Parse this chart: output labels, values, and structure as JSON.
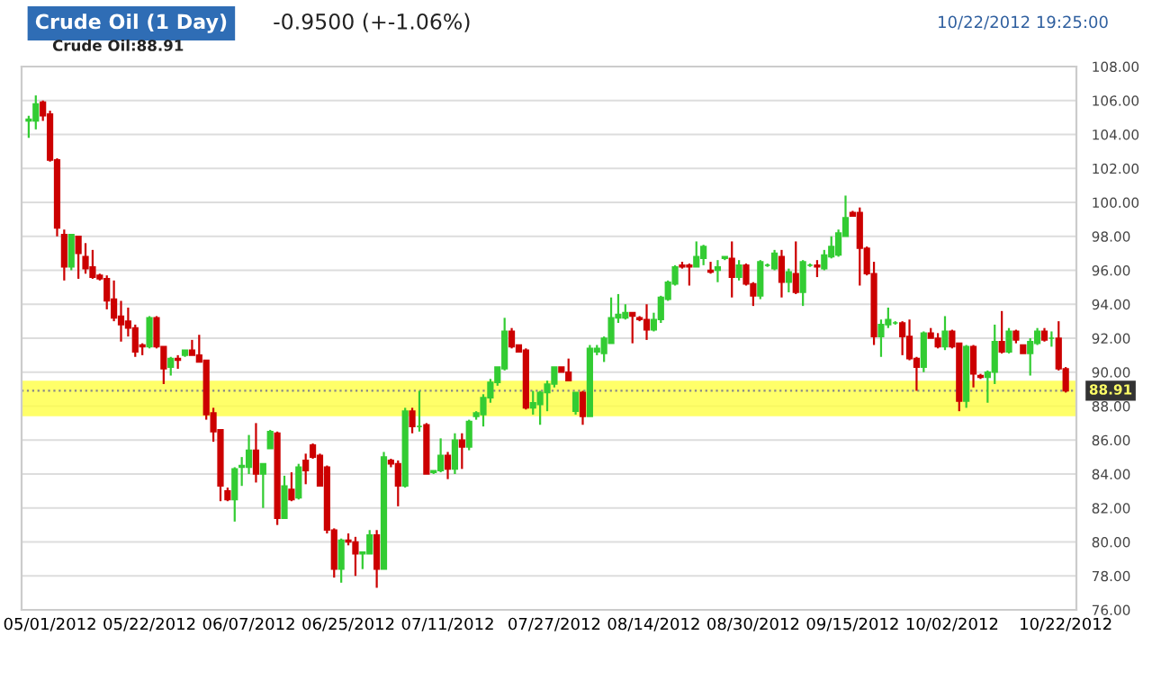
{
  "chart_data": {
    "type": "candlestick",
    "title": "Crude Oil (1 Day)",
    "subtitle": "-0.9500 (+-1.06%)",
    "annotations": [
      "10/22/2012 19:25:00",
      "Crude Oil:88.91"
    ],
    "categories": [
      null,
      null,
      null,
      "05/01/2012",
      null,
      null,
      null,
      null,
      null,
      null,
      null,
      null,
      null,
      null,
      null,
      null,
      null,
      "05/22/2012",
      null,
      null,
      null,
      null,
      null,
      null,
      null,
      null,
      null,
      null,
      null,
      null,
      null,
      "06/07/2012",
      null,
      null,
      null,
      null,
      null,
      null,
      null,
      null,
      null,
      null,
      null,
      null,
      null,
      "06/25/2012",
      null,
      null,
      null,
      null,
      null,
      null,
      null,
      null,
      null,
      null,
      null,
      null,
      null,
      "07/11/2012",
      null,
      null,
      null,
      null,
      null,
      null,
      null,
      null,
      null,
      null,
      null,
      null,
      null,
      null,
      "07/27/2012",
      null,
      null,
      null,
      null,
      null,
      null,
      null,
      null,
      null,
      null,
      null,
      null,
      null,
      "08/14/2012",
      null,
      null,
      null,
      null,
      null,
      null,
      null,
      null,
      null,
      null,
      null,
      null,
      null,
      "08/30/2012",
      null,
      null,
      null,
      null,
      null,
      null,
      null,
      null,
      null,
      null,
      null,
      null,
      null,
      "09/15/2012",
      null,
      null,
      null,
      null,
      null,
      null,
      null,
      null,
      null,
      null,
      null,
      null,
      null,
      "10/02/2012",
      null,
      null,
      null,
      null,
      null,
      null,
      null,
      null,
      null,
      null,
      null,
      null,
      null,
      null,
      null,
      "10/22/2012"
    ],
    "ohlc": [
      [
        104.8,
        105.1,
        103.8,
        104.9
      ],
      [
        104.8,
        106.3,
        104.3,
        105.8
      ],
      [
        105.9,
        106.0,
        104.8,
        105.1
      ],
      [
        105.2,
        105.4,
        102.4,
        102.5
      ],
      [
        102.5,
        102.6,
        98.0,
        98.5
      ],
      [
        98.1,
        98.4,
        95.4,
        96.2
      ],
      [
        96.2,
        98.1,
        96.0,
        98.1
      ],
      [
        98.0,
        98.0,
        95.5,
        97.0
      ],
      [
        96.8,
        97.6,
        95.8,
        96.1
      ],
      [
        96.2,
        97.2,
        95.5,
        95.6
      ],
      [
        95.7,
        95.8,
        95.4,
        95.5
      ],
      [
        95.5,
        95.7,
        93.7,
        94.2
      ],
      [
        94.3,
        95.4,
        93.0,
        93.2
      ],
      [
        93.3,
        94.2,
        91.8,
        92.8
      ],
      [
        93.0,
        93.8,
        92.1,
        92.6
      ],
      [
        92.6,
        92.8,
        90.9,
        91.2
      ],
      [
        91.6,
        91.7,
        91.0,
        91.5
      ],
      [
        91.5,
        93.3,
        91.4,
        93.2
      ],
      [
        93.2,
        93.3,
        91.4,
        91.5
      ],
      [
        91.5,
        91.5,
        89.3,
        90.2
      ],
      [
        90.3,
        90.9,
        89.8,
        90.8
      ],
      [
        90.8,
        91.0,
        90.2,
        90.7
      ],
      [
        91.0,
        91.3,
        90.9,
        91.3
      ],
      [
        91.3,
        91.9,
        91.0,
        91.0
      ],
      [
        91.0,
        92.2,
        90.6,
        90.6
      ],
      [
        90.7,
        90.7,
        87.2,
        87.5
      ],
      [
        87.6,
        87.9,
        85.9,
        86.5
      ],
      [
        86.6,
        86.6,
        82.4,
        83.3
      ],
      [
        83.0,
        83.2,
        82.4,
        82.5
      ],
      [
        82.5,
        84.4,
        81.2,
        84.3
      ],
      [
        84.4,
        85.0,
        83.3,
        84.5
      ],
      [
        84.4,
        86.3,
        84.0,
        85.4
      ],
      [
        85.4,
        87.0,
        83.5,
        84.0
      ],
      [
        84.0,
        84.6,
        82.0,
        84.6
      ],
      [
        85.5,
        86.6,
        85.5,
        86.5
      ],
      [
        86.4,
        86.5,
        81.0,
        81.4
      ],
      [
        81.4,
        83.9,
        81.4,
        83.3
      ],
      [
        83.1,
        84.1,
        82.4,
        82.5
      ],
      [
        82.6,
        84.6,
        82.5,
        84.4
      ],
      [
        84.8,
        85.2,
        83.4,
        84.2
      ],
      [
        85.7,
        85.8,
        84.9,
        85.0
      ],
      [
        85.1,
        85.2,
        83.3,
        83.3
      ],
      [
        84.4,
        84.5,
        80.5,
        80.7
      ],
      [
        80.7,
        80.8,
        77.9,
        78.4
      ],
      [
        78.4,
        80.2,
        77.6,
        80.1
      ],
      [
        80.1,
        80.5,
        79.8,
        80.0
      ],
      [
        80.0,
        80.3,
        78.0,
        79.3
      ],
      [
        79.3,
        79.4,
        78.4,
        79.4
      ],
      [
        79.3,
        80.7,
        79.3,
        80.4
      ],
      [
        80.4,
        80.7,
        77.3,
        78.4
      ],
      [
        78.4,
        85.3,
        78.4,
        85.0
      ],
      [
        84.8,
        84.9,
        84.4,
        84.6
      ],
      [
        84.6,
        84.8,
        82.1,
        83.3
      ],
      [
        83.3,
        87.9,
        83.2,
        87.7
      ],
      [
        87.7,
        87.9,
        86.4,
        86.8
      ],
      [
        86.8,
        88.9,
        86.5,
        86.8
      ],
      [
        86.9,
        87.0,
        84.0,
        84.0
      ],
      [
        84.1,
        84.2,
        84.0,
        84.2
      ],
      [
        84.2,
        86.1,
        84.1,
        85.1
      ],
      [
        85.1,
        85.3,
        83.7,
        84.3
      ],
      [
        84.3,
        86.4,
        84.0,
        86.0
      ],
      [
        86.0,
        86.4,
        84.3,
        85.6
      ],
      [
        85.6,
        87.2,
        85.4,
        87.1
      ],
      [
        87.4,
        87.7,
        87.2,
        87.6
      ],
      [
        87.5,
        88.7,
        86.8,
        88.5
      ],
      [
        88.5,
        89.6,
        88.2,
        89.4
      ],
      [
        89.4,
        90.3,
        89.2,
        90.3
      ],
      [
        90.2,
        93.2,
        90.1,
        92.4
      ],
      [
        92.4,
        92.6,
        91.4,
        91.5
      ],
      [
        91.6,
        91.6,
        91.2,
        91.2
      ],
      [
        91.3,
        91.4,
        87.8,
        87.9
      ],
      [
        87.9,
        88.9,
        87.5,
        88.2
      ],
      [
        88.1,
        88.9,
        86.9,
        88.8
      ],
      [
        88.8,
        89.5,
        87.7,
        89.3
      ],
      [
        89.3,
        90.3,
        89.1,
        90.3
      ],
      [
        90.3,
        90.3,
        90.0,
        90.0
      ],
      [
        90.0,
        90.8,
        89.5,
        89.5
      ],
      [
        87.7,
        88.8,
        87.5,
        88.8
      ],
      [
        88.8,
        88.9,
        86.9,
        87.4
      ],
      [
        87.4,
        91.6,
        87.4,
        91.4
      ],
      [
        91.2,
        91.6,
        91.0,
        91.4
      ],
      [
        91.1,
        92.1,
        90.6,
        92.0
      ],
      [
        91.7,
        94.4,
        91.7,
        93.2
      ],
      [
        93.2,
        94.6,
        92.9,
        93.4
      ],
      [
        93.2,
        94.0,
        93.1,
        93.5
      ],
      [
        93.5,
        93.5,
        91.7,
        93.3
      ],
      [
        93.2,
        93.3,
        93.0,
        93.1
      ],
      [
        93.1,
        94.0,
        91.9,
        92.5
      ],
      [
        92.5,
        93.5,
        92.4,
        93.1
      ],
      [
        93.1,
        94.5,
        92.9,
        94.4
      ],
      [
        94.3,
        95.4,
        94.2,
        95.3
      ],
      [
        95.2,
        96.3,
        95.1,
        96.2
      ],
      [
        96.3,
        96.5,
        96.1,
        96.2
      ],
      [
        96.3,
        96.4,
        95.1,
        96.2
      ],
      [
        96.2,
        97.7,
        96.2,
        96.8
      ],
      [
        96.7,
        97.5,
        96.3,
        97.4
      ],
      [
        96.0,
        96.5,
        95.8,
        95.9
      ],
      [
        96.0,
        96.6,
        95.3,
        96.2
      ],
      [
        96.7,
        96.8,
        96.6,
        96.8
      ],
      [
        96.7,
        97.7,
        94.4,
        95.6
      ],
      [
        95.6,
        96.6,
        95.4,
        96.3
      ],
      [
        96.3,
        96.4,
        95.1,
        95.2
      ],
      [
        95.2,
        95.3,
        93.9,
        94.5
      ],
      [
        94.5,
        96.6,
        94.3,
        96.5
      ],
      [
        96.3,
        96.4,
        96.2,
        96.3
      ],
      [
        96.1,
        97.2,
        96.0,
        97.0
      ],
      [
        96.8,
        97.2,
        94.4,
        95.3
      ],
      [
        95.3,
        96.1,
        94.7,
        95.9
      ],
      [
        95.8,
        97.7,
        94.6,
        94.7
      ],
      [
        94.7,
        96.6,
        93.9,
        96.5
      ],
      [
        96.3,
        96.4,
        96.2,
        96.3
      ],
      [
        96.3,
        96.6,
        95.6,
        96.2
      ],
      [
        96.1,
        97.2,
        96.0,
        96.9
      ],
      [
        96.8,
        98.0,
        96.7,
        97.4
      ],
      [
        96.9,
        98.4,
        96.8,
        98.2
      ],
      [
        98.0,
        100.4,
        98.0,
        99.1
      ],
      [
        99.4,
        99.5,
        99.2,
        99.2
      ],
      [
        99.4,
        99.7,
        95.1,
        97.3
      ],
      [
        97.3,
        97.4,
        95.7,
        95.8
      ],
      [
        95.8,
        96.5,
        91.6,
        92.1
      ],
      [
        92.1,
        93.1,
        90.9,
        92.8
      ],
      [
        92.8,
        93.8,
        92.6,
        93.1
      ],
      [
        92.9,
        93.0,
        92.8,
        92.9
      ],
      [
        92.9,
        93.0,
        91.0,
        92.1
      ],
      [
        92.1,
        93.1,
        90.7,
        90.8
      ],
      [
        90.8,
        90.9,
        88.9,
        90.3
      ],
      [
        90.3,
        92.4,
        90.0,
        92.3
      ],
      [
        92.3,
        92.6,
        92.0,
        92.0
      ],
      [
        92.0,
        92.3,
        91.4,
        91.5
      ],
      [
        91.5,
        93.3,
        91.3,
        92.4
      ],
      [
        92.4,
        92.5,
        91.4,
        91.5
      ],
      [
        91.7,
        91.7,
        87.7,
        88.3
      ],
      [
        88.3,
        91.6,
        87.9,
        91.5
      ],
      [
        91.5,
        91.6,
        89.1,
        89.9
      ],
      [
        89.8,
        89.9,
        89.6,
        89.7
      ],
      [
        89.7,
        90.1,
        88.2,
        90.0
      ],
      [
        90.0,
        92.8,
        89.3,
        91.8
      ],
      [
        91.8,
        93.6,
        91.1,
        91.2
      ],
      [
        91.2,
        92.6,
        91.1,
        92.4
      ],
      [
        92.4,
        92.5,
        91.7,
        91.9
      ],
      [
        91.6,
        91.6,
        91.1,
        91.1
      ],
      [
        91.1,
        92.0,
        89.8,
        91.8
      ],
      [
        91.7,
        92.6,
        91.6,
        92.4
      ],
      [
        92.4,
        92.6,
        91.8,
        91.9
      ],
      [
        92.0,
        92.4,
        91.5,
        92.0
      ],
      [
        92.0,
        93.0,
        90.1,
        90.2
      ],
      [
        90.2,
        90.3,
        88.8,
        88.91
      ]
    ],
    "colors": [
      "#33cc33",
      "#33cc33",
      "#cc0000",
      "#cc0000",
      "#cc0000",
      "#cc0000",
      "#33cc33",
      "#cc0000",
      "#cc0000",
      "#cc0000",
      "#cc0000",
      "#cc0000",
      "#cc0000",
      "#cc0000",
      "#cc0000",
      "#cc0000",
      "#cc0000",
      "#33cc33",
      "#cc0000",
      "#cc0000",
      "#33cc33",
      "#cc0000",
      "#33cc33",
      "#cc0000",
      "#cc0000",
      "#cc0000",
      "#cc0000",
      "#cc0000",
      "#cc0000",
      "#33cc33",
      "#33cc33",
      "#33cc33",
      "#cc0000",
      "#33cc33",
      "#33cc33",
      "#cc0000",
      "#33cc33",
      "#cc0000",
      "#33cc33",
      "#cc0000",
      "#cc0000",
      "#cc0000",
      "#cc0000",
      "#cc0000",
      "#33cc33",
      "#cc0000",
      "#cc0000",
      "#33cc33",
      "#33cc33",
      "#cc0000",
      "#33cc33",
      "#cc0000",
      "#cc0000",
      "#33cc33",
      "#cc0000",
      "#33cc33",
      "#cc0000",
      "#33cc33",
      "#33cc33",
      "#cc0000",
      "#33cc33",
      "#cc0000",
      "#33cc33",
      "#33cc33",
      "#33cc33",
      "#33cc33",
      "#33cc33",
      "#33cc33",
      "#cc0000",
      "#cc0000",
      "#cc0000",
      "#33cc33",
      "#33cc33",
      "#33cc33",
      "#33cc33",
      "#cc0000",
      "#cc0000",
      "#33cc33",
      "#cc0000",
      "#33cc33",
      "#33cc33",
      "#33cc33",
      "#33cc33",
      "#33cc33",
      "#33cc33",
      "#cc0000",
      "#cc0000",
      "#cc0000",
      "#33cc33",
      "#33cc33",
      "#33cc33",
      "#33cc33",
      "#cc0000",
      "#cc0000",
      "#33cc33",
      "#33cc33",
      "#cc0000",
      "#33cc33",
      "#33cc33",
      "#cc0000",
      "#33cc33",
      "#cc0000",
      "#cc0000",
      "#33cc33",
      "#33cc33",
      "#33cc33",
      "#cc0000",
      "#33cc33",
      "#cc0000",
      "#33cc33",
      "#33cc33",
      "#cc0000",
      "#33cc33",
      "#33cc33",
      "#33cc33",
      "#33cc33",
      "#cc0000",
      "#cc0000",
      "#cc0000",
      "#cc0000",
      "#33cc33",
      "#33cc33",
      "#33cc33",
      "#cc0000",
      "#cc0000",
      "#cc0000",
      "#33cc33",
      "#cc0000",
      "#cc0000",
      "#33cc33",
      "#cc0000",
      "#cc0000",
      "#33cc33",
      "#cc0000",
      "#cc0000",
      "#33cc33",
      "#33cc33",
      "#cc0000",
      "#33cc33",
      "#cc0000",
      "#cc0000",
      "#33cc33",
      "#33cc33",
      "#cc0000",
      "#33cc33",
      "#cc0000",
      "#cc0000"
    ],
    "ylim": [
      76,
      108
    ],
    "yticks": [
      {
        "value": 76,
        "label": "76.00"
      },
      {
        "value": 78,
        "label": "78.00"
      },
      {
        "value": 80,
        "label": "80.00"
      },
      {
        "value": 82,
        "label": "82.00"
      },
      {
        "value": 84,
        "label": "84.00"
      },
      {
        "value": 86,
        "label": "86.00"
      },
      {
        "value": 88,
        "label": "88.00"
      },
      {
        "value": 90,
        "label": "90.00"
      },
      {
        "value": 92,
        "label": "92.00"
      },
      {
        "value": 94,
        "label": "94.00"
      },
      {
        "value": 96,
        "label": "96.00"
      },
      {
        "value": 98,
        "label": "98.00"
      },
      {
        "value": 100,
        "label": "100.00"
      },
      {
        "value": 102,
        "label": "102.00"
      },
      {
        "value": 104,
        "label": "104.00"
      },
      {
        "value": 106,
        "label": "106.00"
      },
      {
        "value": 108,
        "label": "108.00"
      }
    ],
    "grid": "y",
    "ref_lines": [
      {
        "axis": "y",
        "value": 88.91,
        "label": "88.91",
        "color": "#888888",
        "line_style": "dotted"
      }
    ],
    "bands": [
      {
        "axis": "y",
        "from": 87.4,
        "to": 89.5,
        "color": "#ffff44"
      }
    ]
  }
}
